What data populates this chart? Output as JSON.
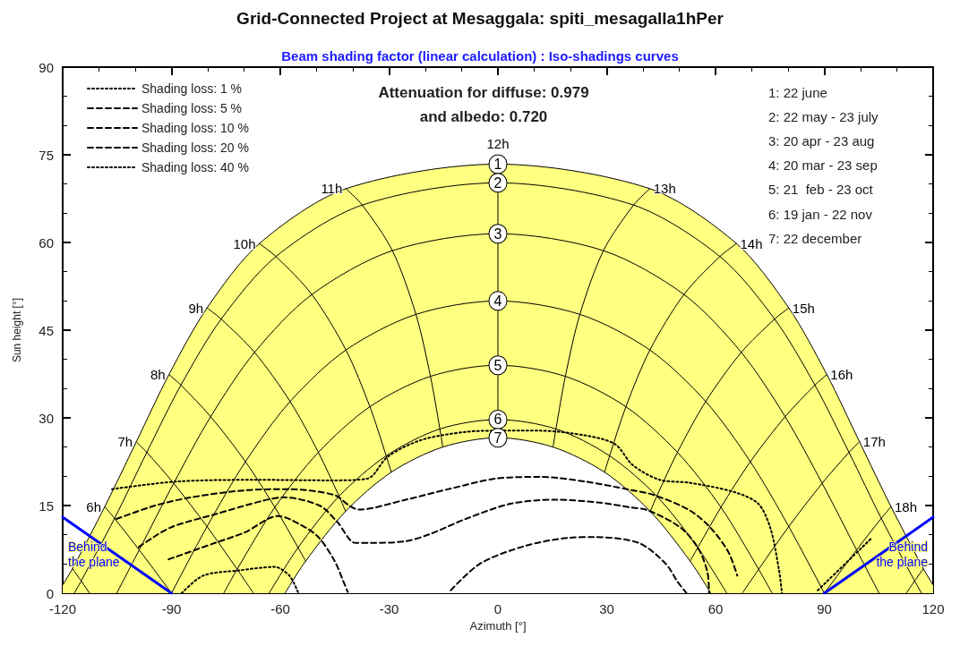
{
  "chart_data": {
    "type": "line",
    "title": "Grid-Connected Project at Mesaggala: spiti_mesagalla1hPer",
    "subtitle": "Beam shading factor (linear calculation) : Iso-shadings curves",
    "xlabel": "Azimuth [°]",
    "ylabel": "Sun height [°]",
    "xlim": [
      -120,
      120
    ],
    "xticks": [
      -120,
      -90,
      -60,
      -30,
      0,
      30,
      60,
      90,
      120
    ],
    "ylim": [
      0,
      90
    ],
    "yticks": [
      0,
      15,
      30,
      45,
      60,
      75,
      90
    ],
    "grid": false,
    "legend": "top left",
    "marker": "none",
    "line_style": "solid",
    "series": [
      {
        "name": "1",
        "type": "area",
        "color": "#ffff80",
        "x": [
          -120,
          -117.3,
          -108.4,
          -99.7,
          -90.7,
          -80.2,
          -65.8,
          -41.9,
          0,
          41.9,
          65.8,
          80.2,
          90.7,
          99.7,
          108.4,
          117.3,
          120
        ],
        "values": [
          1.4,
          4.2,
          14.8,
          25.9,
          37.4,
          48.8,
          59.8,
          69.2,
          73.4,
          69.2,
          59.8,
          48.8,
          37.4,
          25.9,
          14.8,
          4.2,
          1.4
        ]
      },
      {
        "name": "2",
        "color": "#000000",
        "x": [
          -116.8,
          -114.9,
          -105.7,
          -96.8,
          -87.4,
          -76.3,
          -61.2,
          -37.4,
          0,
          37.4,
          61.2,
          76.3,
          87.4,
          96.8,
          105.7,
          114.9,
          116.8
        ],
        "values": [
          0,
          2.1,
          12.8,
          24.1,
          35.6,
          46.9,
          57.6,
          66.4,
          70.2,
          66.4,
          57.6,
          46.9,
          35.6,
          24.1,
          12.8,
          2.1,
          0
        ]
      },
      {
        "name": "3",
        "color": "#000000",
        "x": [
          -105.1,
          -98.9,
          -89.4,
          -79.2,
          -67.1,
          -51.3,
          -29.1,
          0,
          29.1,
          51.3,
          67.1,
          79.2,
          89.4,
          98.9,
          105.1
        ],
        "values": [
          0,
          7.4,
          18.8,
          30.2,
          41.2,
          51.1,
          58.6,
          61.5,
          58.6,
          51.1,
          41.2,
          30.2,
          18.8,
          7.4,
          0
        ]
      },
      {
        "name": "4",
        "color": "#000000",
        "x": [
          -90,
          -80.2,
          -69.6,
          -57.3,
          -41.9,
          -22.6,
          0,
          22.6,
          41.9,
          57.3,
          69.6,
          80.2,
          90
        ],
        "values": [
          0,
          11.4,
          22.5,
          32.8,
          41.6,
          47.7,
          50,
          47.7,
          41.6,
          32.8,
          22.5,
          11.4,
          0
        ]
      },
      {
        "name": "5",
        "color": "#000000",
        "x": [
          -75.6,
          -71.9,
          -61.5,
          -49.5,
          -35.3,
          -18.6,
          0,
          18.6,
          35.3,
          49.5,
          61.5,
          71.9,
          75.6
        ],
        "values": [
          0,
          4.1,
          14.7,
          24.1,
          31.9,
          37.1,
          39,
          37.1,
          31.9,
          24.1,
          14.7,
          4.1,
          0
        ]
      },
      {
        "name": "6",
        "color": "#000000",
        "x": [
          -63.1,
          -55.1,
          -43.8,
          -30.8,
          -16,
          0,
          16,
          30.8,
          43.8,
          55.1,
          63.1
        ],
        "values": [
          0,
          7.8,
          16.6,
          23.5,
          28.1,
          29.7,
          28.1,
          23.5,
          16.6,
          7.8,
          0
        ]
      },
      {
        "name": "7",
        "type": "area",
        "color": "#ffffff",
        "x": [
          -58.7,
          -53,
          -42,
          -29.4,
          -15.2,
          0,
          15.2,
          29.4,
          42,
          53,
          58.7
        ],
        "values": [
          0,
          5.5,
          14,
          20.7,
          25,
          26.6,
          25,
          20.7,
          14,
          5.5,
          0
        ]
      },
      {
        "color": "#000000",
        "x": [
          -117.3,
          -114.9,
          -112.6
        ],
        "values": [
          4.2,
          2.1,
          0
        ]
      },
      {
        "name": "6h",
        "color": "#000000",
        "x": [
          -108.4,
          -105.7,
          -98.9,
          -90
        ],
        "values": [
          14.8,
          12.8,
          7.4,
          0
        ]
      },
      {
        "name": "7h",
        "color": "#000000",
        "x": [
          -99.7,
          -96.8,
          -89.4,
          -80.2,
          -71.9,
          -67.4
        ],
        "values": [
          25.9,
          24.1,
          18.8,
          11.4,
          4.1,
          0
        ]
      },
      {
        "name": "8h",
        "color": "#000000",
        "x": [
          -90.7,
          -87.4,
          -79.2,
          -69.6,
          -61.5,
          -55.1,
          -53
        ],
        "values": [
          37.4,
          35.6,
          30.2,
          22.5,
          14.7,
          7.8,
          5.5
        ]
      },
      {
        "name": "9h",
        "color": "#000000",
        "x": [
          -80.2,
          -76.3,
          -67.1,
          -57.3,
          -49.5,
          -43.8,
          -42
        ],
        "values": [
          48.8,
          46.9,
          41.2,
          32.8,
          24.1,
          16.6,
          14
        ]
      },
      {
        "name": "10h",
        "color": "#000000",
        "x": [
          -65.8,
          -61.2,
          -51.3,
          -41.9,
          -35.3,
          -30.8,
          -29.4
        ],
        "values": [
          59.8,
          57.6,
          51.1,
          41.6,
          31.9,
          23.5,
          20.7
        ]
      },
      {
        "name": "11h",
        "color": "#000000",
        "x": [
          -41.9,
          -37.4,
          -29.1,
          -22.6,
          -18.6,
          -16,
          -15.2
        ],
        "values": [
          69.2,
          66.4,
          58.6,
          47.7,
          37.1,
          28.1,
          25
        ]
      },
      {
        "name": "12h",
        "color": "#000000",
        "x": [
          0,
          0,
          0,
          0,
          0,
          0,
          0
        ],
        "values": [
          73.4,
          70.2,
          61.5,
          50,
          39,
          29.7,
          26.6
        ]
      },
      {
        "name": "13h",
        "color": "#000000",
        "x": [
          41.9,
          37.4,
          29.1,
          22.6,
          18.6,
          16,
          15.2
        ],
        "values": [
          69.2,
          66.4,
          58.6,
          47.7,
          37.1,
          28.1,
          25
        ]
      },
      {
        "name": "14h",
        "color": "#000000",
        "x": [
          65.8,
          61.2,
          51.3,
          41.9,
          35.3,
          30.8,
          29.4
        ],
        "values": [
          59.8,
          57.6,
          51.1,
          41.6,
          31.9,
          23.5,
          20.7
        ]
      },
      {
        "name": "15h",
        "color": "#000000",
        "x": [
          80.2,
          76.3,
          67.1,
          57.3,
          49.5,
          43.8,
          42
        ],
        "values": [
          48.8,
          46.9,
          41.2,
          32.8,
          24.1,
          16.6,
          14
        ]
      },
      {
        "name": "16h",
        "color": "#000000",
        "x": [
          90.7,
          87.4,
          79.2,
          69.6,
          61.5,
          55.1,
          53
        ],
        "values": [
          37.4,
          35.6,
          30.2,
          22.5,
          14.7,
          7.8,
          5.5
        ]
      },
      {
        "name": "17h",
        "color": "#000000",
        "x": [
          99.7,
          96.8,
          89.4,
          80.2,
          71.9,
          67.4
        ],
        "values": [
          25.9,
          24.1,
          18.8,
          11.4,
          4.1,
          0
        ]
      },
      {
        "name": "18h",
        "color": "#000000",
        "x": [
          108.4,
          105.7,
          98.9,
          90
        ],
        "values": [
          14.8,
          12.8,
          7.4,
          0
        ]
      },
      {
        "color": "#000000",
        "x": [
          117.3,
          114.9,
          112.6
        ],
        "values": [
          4.2,
          2.1,
          0
        ]
      },
      {
        "name": "Shading loss: 1 %",
        "color": "#000000",
        "line_style": "dotted",
        "x": [
          -106.4,
          -88.7,
          -66.5,
          -45.9,
          -36,
          -30.3,
          -21.2,
          -8.9,
          0.2,
          11.7,
          24,
          32.3,
          37.2,
          44.6,
          52.8,
          65.2,
          71.8,
          75.1,
          77.5,
          78.3
        ],
        "values": [
          17.8,
          19.1,
          19.4,
          19.3,
          19.6,
          23.4,
          26.2,
          27.6,
          27.8,
          27.8,
          27,
          25.5,
          21.9,
          19.4,
          18.9,
          17.3,
          15.3,
          11.2,
          4,
          0
        ]
      },
      {
        "name": "Shading loss: 5 %",
        "color": "#000000",
        "line_style": "dashed",
        "x": [
          -105.2,
          -94.5,
          -84.6,
          -69.8,
          -57.5,
          -45.1,
          -41,
          -38.5,
          -25.4,
          -13,
          -0.7,
          11.7,
          24,
          36.4,
          43,
          52.8,
          58.6,
          63.5,
          66
        ],
        "values": [
          12.7,
          15,
          16.4,
          17.6,
          17.8,
          16.8,
          15,
          14.3,
          16,
          17.9,
          19.6,
          19.9,
          19.1,
          17.7,
          16.8,
          14.2,
          11.2,
          7.1,
          3
        ]
      },
      {
        "name": "Shading loss: 10 %",
        "color": "#000000",
        "line_style": "dashed",
        "x": [
          -99,
          -90.4,
          -78,
          -64.9,
          -59.1,
          -49.2,
          -44.3,
          -39.3,
          -35.2,
          -25.4,
          -18.8,
          -8.9,
          3.5,
          15.8,
          28.1,
          36.4,
          41.3,
          50.4,
          55.3,
          57.8,
          58.2
        ],
        "values": [
          7.9,
          11.2,
          13.5,
          15.8,
          16.4,
          15,
          12.2,
          8.6,
          8.6,
          8.9,
          10.1,
          12.7,
          15.3,
          16,
          15.5,
          14.7,
          14.2,
          11.2,
          7.6,
          3.5,
          0
        ]
      },
      {
        "name": "Shading loss: 20 %",
        "color": "#000000",
        "line_style": "dashed",
        "x": [
          -90.8,
          -78,
          -69.8,
          -60.7,
          -57.5,
          -50,
          -45.1,
          -42.6,
          -41.4,
          -27,
          -13,
          -4.8,
          7.6,
          19.9,
          26.5,
          38.8,
          46.2,
          49.5,
          52
        ],
        "values": [
          5.8,
          8.6,
          10.4,
          13.2,
          12.7,
          9.9,
          5.6,
          2,
          0.2,
          null,
          0.5,
          5.1,
          8.1,
          9.5,
          9.6,
          8.6,
          5.1,
          2,
          0
        ]
      },
      {
        "name": "Shading loss: 40 %",
        "color": "#000000",
        "line_style": "dotted",
        "x": [
          -87.2,
          -81.3,
          -71.4,
          -61.6,
          -57.5,
          -55,
          0,
          88.2,
          103
        ],
        "values": [
          0,
          3,
          3.9,
          4.5,
          3,
          0,
          null,
          0.5,
          9.4
        ]
      },
      {
        "name": "Behind\nthe plane",
        "color": "#0000ff",
        "x": [
          -120,
          -90
        ],
        "values": [
          13,
          0
        ]
      },
      {
        "name": "Behind\nthe plane",
        "color": "#0000ff",
        "x": [
          90,
          120
        ],
        "values": [
          0,
          13
        ]
      }
    ],
    "annotations": [
      "Attenuation for diffuse: 0.979",
      "and albedo: 0.720",
      "1: 22 june",
      "2: 22 may - 23 july",
      "3: 20 apr - 23 aug",
      "4: 20 mar - 23 sep",
      "5: 21  feb - 23 oct",
      "6: 19 jan - 22 nov",
      "7: 22 december"
    ]
  }
}
